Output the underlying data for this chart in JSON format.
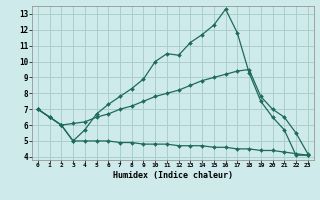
{
  "xlabel": "Humidex (Indice chaleur)",
  "xlim": [
    -0.5,
    23.5
  ],
  "ylim": [
    3.8,
    13.5
  ],
  "yticks": [
    4,
    5,
    6,
    7,
    8,
    9,
    10,
    11,
    12,
    13
  ],
  "xticks": [
    0,
    1,
    2,
    3,
    4,
    5,
    6,
    7,
    8,
    9,
    10,
    11,
    12,
    13,
    14,
    15,
    16,
    17,
    18,
    19,
    20,
    21,
    22,
    23
  ],
  "bg_color": "#ceeaea",
  "line_color": "#1e6b5a",
  "grid_color": "#aacfcf",
  "series": [
    {
      "x": [
        0,
        1,
        2,
        3,
        4,
        5,
        6,
        7,
        8,
        9,
        10,
        11,
        12,
        13,
        14,
        15,
        16,
        17,
        18,
        19,
        20,
        21,
        22,
        23
      ],
      "y": [
        7.0,
        6.5,
        6.0,
        5.0,
        5.7,
        6.7,
        7.3,
        7.8,
        8.3,
        8.9,
        10.0,
        10.5,
        10.4,
        11.2,
        11.7,
        12.3,
        13.3,
        11.8,
        9.3,
        7.5,
        6.5,
        5.7,
        4.1,
        4.1
      ]
    },
    {
      "x": [
        0,
        1,
        2,
        3,
        4,
        5,
        6,
        7,
        8,
        9,
        10,
        11,
        12,
        13,
        14,
        15,
        16,
        17,
        18,
        19,
        20,
        21,
        22,
        23
      ],
      "y": [
        7.0,
        6.5,
        6.0,
        6.1,
        6.2,
        6.5,
        6.7,
        7.0,
        7.2,
        7.5,
        7.8,
        8.0,
        8.2,
        8.5,
        8.8,
        9.0,
        9.2,
        9.4,
        9.5,
        7.8,
        7.0,
        6.5,
        5.5,
        4.2
      ]
    },
    {
      "x": [
        0,
        1,
        2,
        3,
        4,
        5,
        6,
        7,
        8,
        9,
        10,
        11,
        12,
        13,
        14,
        15,
        16,
        17,
        18,
        19,
        20,
        21,
        22,
        23
      ],
      "y": [
        7.0,
        6.5,
        6.0,
        5.0,
        5.0,
        5.0,
        5.0,
        4.9,
        4.9,
        4.8,
        4.8,
        4.8,
        4.7,
        4.7,
        4.7,
        4.6,
        4.6,
        4.5,
        4.5,
        4.4,
        4.4,
        4.3,
        4.2,
        4.1
      ]
    }
  ]
}
